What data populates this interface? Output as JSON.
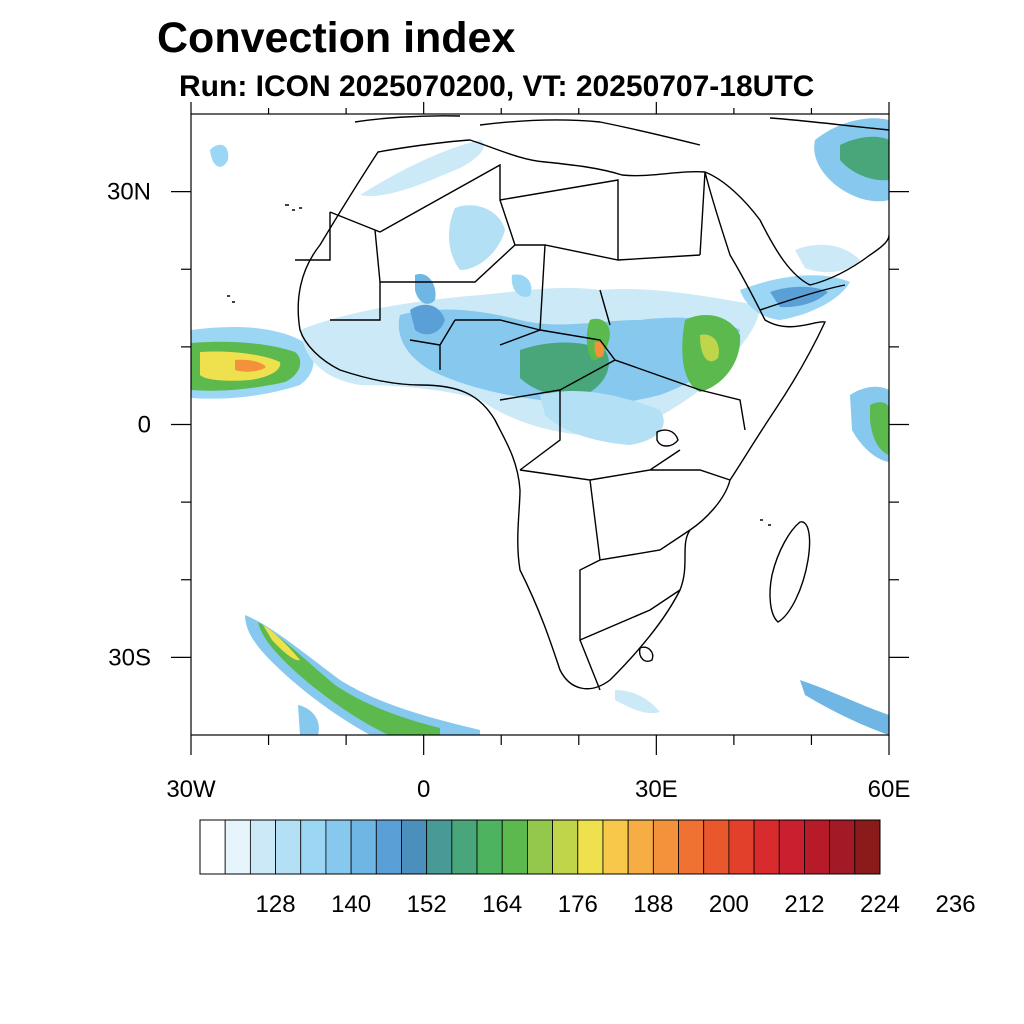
{
  "title": "Convection index",
  "subtitle": "Run: ICON 2025070200,  VT: 20250707-18UTC",
  "map": {
    "lon_range": [
      -30,
      60
    ],
    "lat_range": [
      -40,
      40
    ],
    "lon_ticks": [
      {
        "value": -30,
        "label": "30W"
      },
      {
        "value": 0,
        "label": "0"
      },
      {
        "value": 30,
        "label": "30E"
      },
      {
        "value": 60,
        "label": "60E"
      }
    ],
    "lat_ticks": [
      {
        "value": 30,
        "label": "30N"
      },
      {
        "value": 0,
        "label": "0"
      },
      {
        "value": -30,
        "label": "30S"
      }
    ],
    "minor_lon_ticks": [
      -20,
      -10,
      10,
      20,
      40,
      50
    ],
    "minor_lat_ticks": [
      20,
      10,
      -10,
      -20
    ]
  },
  "colorbar": {
    "colors": [
      "#ffffff",
      "#e6f4fc",
      "#cce9f8",
      "#b4e0f6",
      "#9bd6f4",
      "#86c8ee",
      "#6fb6e4",
      "#5a9fd6",
      "#4b8fbd",
      "#479a95",
      "#48a67a",
      "#4db35f",
      "#5cb94e",
      "#94c84c",
      "#c0d54a",
      "#efe04d",
      "#f7c84a",
      "#f6ad43",
      "#f4923b",
      "#ef7233",
      "#e9582c",
      "#e2402b",
      "#d82b2e",
      "#c91f2e",
      "#b71b2a",
      "#a21a25",
      "#8b1a1a"
    ],
    "labels": [
      "128",
      "140",
      "152",
      "164",
      "176",
      "188",
      "200",
      "212",
      "224",
      "236"
    ]
  }
}
